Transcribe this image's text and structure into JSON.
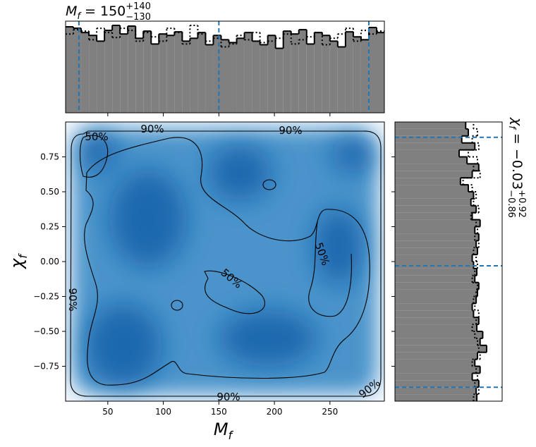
{
  "chart_data": [
    {
      "type": "histogram",
      "orientation": "vertical",
      "title": {
        "symbol": "M",
        "sub": "f",
        "text": " = 150",
        "upper": "+140",
        "lower": "−130"
      },
      "xlim": [
        12,
        299
      ],
      "xticks": [
        50,
        100,
        150,
        200,
        250
      ],
      "bins": [
        12,
        19,
        26,
        33,
        40,
        47,
        54,
        61,
        68,
        75,
        82,
        89,
        96,
        103,
        110,
        117,
        124,
        131,
        138,
        145,
        152,
        159,
        166,
        173,
        180,
        187,
        194,
        201,
        208,
        215,
        222,
        229,
        236,
        243,
        250,
        257,
        264,
        271,
        278,
        285,
        292,
        299
      ],
      "quantiles": [
        24,
        150,
        285
      ],
      "quantile_color": "#1f77b4",
      "series": [
        {
          "color": "#808080",
          "values": [
            120,
            118,
            112,
            108,
            100,
            115,
            122,
            110,
            121,
            104,
            114,
            96,
            110,
            108,
            113,
            100,
            104,
            112,
            95,
            108,
            102,
            98,
            104,
            112,
            100,
            95,
            108,
            90,
            114,
            110,
            116,
            96,
            112,
            108,
            100,
            92,
            113,
            106,
            102,
            119,
            112
          ]
        },
        {
          "style": "dotted",
          "values": [
            110,
            116,
            114,
            102,
            118,
            112,
            105,
            118,
            115,
            100,
            112,
            106,
            100,
            118,
            112,
            96,
            122,
            110,
            100,
            104,
            92,
            96,
            108,
            102,
            112,
            98,
            100,
            104,
            110,
            96,
            102,
            106,
            112,
            95,
            104,
            110,
            118,
            100,
            115,
            110,
            114
          ]
        }
      ]
    },
    {
      "type": "heatmap",
      "xlim": [
        12,
        299
      ],
      "xticks": [
        50,
        100,
        150,
        200,
        250
      ],
      "ylim": [
        -1,
        1
      ],
      "yticks": [
        {
          "value": -0.75,
          "label": "−0.75"
        },
        {
          "value": -0.5,
          "label": "−0.50"
        },
        {
          "value": -0.25,
          "label": "−0.25"
        },
        {
          "value": 0,
          "label": "0.00"
        },
        {
          "value": 0.25,
          "label": "0.25"
        },
        {
          "value": 0.5,
          "label": "0.50"
        },
        {
          "value": 0.75,
          "label": "0.75"
        }
      ],
      "xlabel": {
        "symbol": "M",
        "sub": "f"
      },
      "ylabel": {
        "symbol": "χ",
        "sub": "f"
      },
      "contour_labels": [
        "90%",
        "90%",
        "50%",
        "50%",
        "50%",
        "90%",
        "90%",
        "90%"
      ]
    },
    {
      "type": "histogram",
      "orientation": "horizontal",
      "title": {
        "symbol": "χ",
        "sub": "f",
        "text": " = −0.03",
        "upper": "+0.92",
        "lower": "−0.86"
      },
      "ylim": [
        -1,
        1
      ],
      "yticks": [
        -0.75,
        -0.5,
        -0.25,
        0,
        0.25,
        0.5,
        0.75
      ],
      "bins": [
        -1,
        -0.95,
        -0.9,
        -0.85,
        -0.8,
        -0.75,
        -0.7,
        -0.65,
        -0.6,
        -0.55,
        -0.5,
        -0.45,
        -0.4,
        -0.35,
        -0.3,
        -0.25,
        -0.2,
        -0.15,
        -0.1,
        -0.05,
        0,
        0.05,
        0.1,
        0.15,
        0.2,
        0.25,
        0.3,
        0.35,
        0.4,
        0.45,
        0.5,
        0.55,
        0.6,
        0.65,
        0.7,
        0.75,
        0.8,
        0.85,
        0.9,
        0.95,
        1
      ],
      "quantiles": [
        -0.9,
        -0.03,
        0.89
      ],
      "quantile_color": "#1f77b4",
      "series": [
        {
          "color": "#808080",
          "values": [
            125,
            124,
            128,
            118,
            130,
            122,
            126,
            140,
            130,
            134,
            125,
            128,
            120,
            118,
            124,
            126,
            128,
            122,
            125,
            120,
            118,
            126,
            124,
            128,
            122,
            130,
            118,
            124,
            116,
            120,
            112,
            100,
            118,
            128,
            110,
            98,
            122,
            102,
            112,
            108
          ]
        },
        {
          "style": "dotted",
          "values": [
            120,
            128,
            122,
            126,
            124,
            118,
            130,
            128,
            126,
            122,
            118,
            124,
            128,
            122,
            120,
            124,
            126,
            118,
            122,
            126,
            124,
            120,
            128,
            122,
            126,
            124,
            116,
            128,
            120,
            124,
            118,
            104,
            130,
            120,
            126,
            112,
            128,
            118,
            126,
            120
          ]
        }
      ]
    }
  ]
}
